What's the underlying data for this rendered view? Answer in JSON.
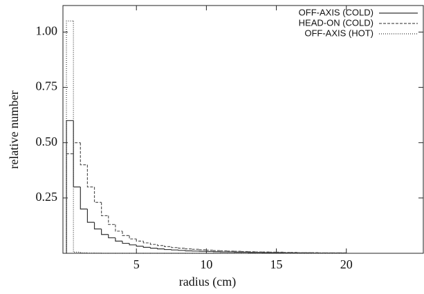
{
  "chart_data": {
    "type": "histogram",
    "x_label": "radius (cm)",
    "y_label": "relative number",
    "bins": [
      0,
      0.5,
      1,
      1.5,
      2,
      2.5,
      3,
      3.5,
      4,
      4.5,
      5,
      5.5,
      6,
      6.5,
      7,
      7.5,
      8,
      8.5,
      9,
      9.5,
      10,
      10.5,
      11,
      11.5,
      12,
      12.5,
      13,
      13.5,
      14,
      14.5,
      15,
      15.5,
      16,
      16.5,
      17,
      17.5,
      18,
      18.5,
      19,
      19.5,
      20
    ],
    "series": [
      {
        "name": "OFF-AXIS (COLD)",
        "color": "#333333",
        "dash": "none",
        "values": [
          0.6,
          0.3,
          0.2,
          0.14,
          0.11,
          0.085,
          0.07,
          0.055,
          0.045,
          0.038,
          0.032,
          0.027,
          0.023,
          0.02,
          0.017,
          0.015,
          0.013,
          0.011,
          0.01,
          0.009,
          0.008,
          0.007,
          0.006,
          0.006,
          0.005,
          0.005,
          0.004,
          0.004,
          0.003,
          0.003,
          0.003,
          0.002,
          0.002,
          0.002,
          0.002,
          0.001,
          0.001,
          0.001,
          0.001,
          0.001
        ]
      },
      {
        "name": "HEAD-ON (COLD)",
        "color": "#555555",
        "dash": "4 2",
        "values": [
          0.45,
          0.5,
          0.4,
          0.3,
          0.23,
          0.17,
          0.13,
          0.1,
          0.08,
          0.065,
          0.055,
          0.047,
          0.04,
          0.035,
          0.03,
          0.026,
          0.023,
          0.02,
          0.018,
          0.016,
          0.014,
          0.012,
          0.011,
          0.01,
          0.009,
          0.008,
          0.007,
          0.006,
          0.006,
          0.005,
          0.005,
          0.004,
          0.004,
          0.003,
          0.003,
          0.003,
          0.002,
          0.002,
          0.002,
          0.002
        ]
      },
      {
        "name": "OFF-AXIS (HOT)",
        "color": "#333333",
        "dash": "1 2",
        "values": [
          1.05,
          0.005,
          0.002,
          0.001,
          0.001,
          0,
          0,
          0,
          0,
          0,
          0,
          0,
          0,
          0,
          0,
          0,
          0,
          0,
          0,
          0,
          0,
          0,
          0,
          0,
          0,
          0,
          0,
          0,
          0,
          0,
          0,
          0,
          0,
          0,
          0,
          0,
          0,
          0,
          0,
          0
        ]
      }
    ],
    "xlim": [
      -0.25,
      25.5
    ],
    "ylim": [
      0,
      1.12
    ],
    "xticks": [
      5,
      10,
      15,
      20
    ],
    "yticks": [
      0.25,
      {
        "value": 0.5,
        "label": "0.50"
      },
      0.75,
      {
        "value": 1,
        "label": "1.00"
      }
    ],
    "legend": "upper right"
  }
}
